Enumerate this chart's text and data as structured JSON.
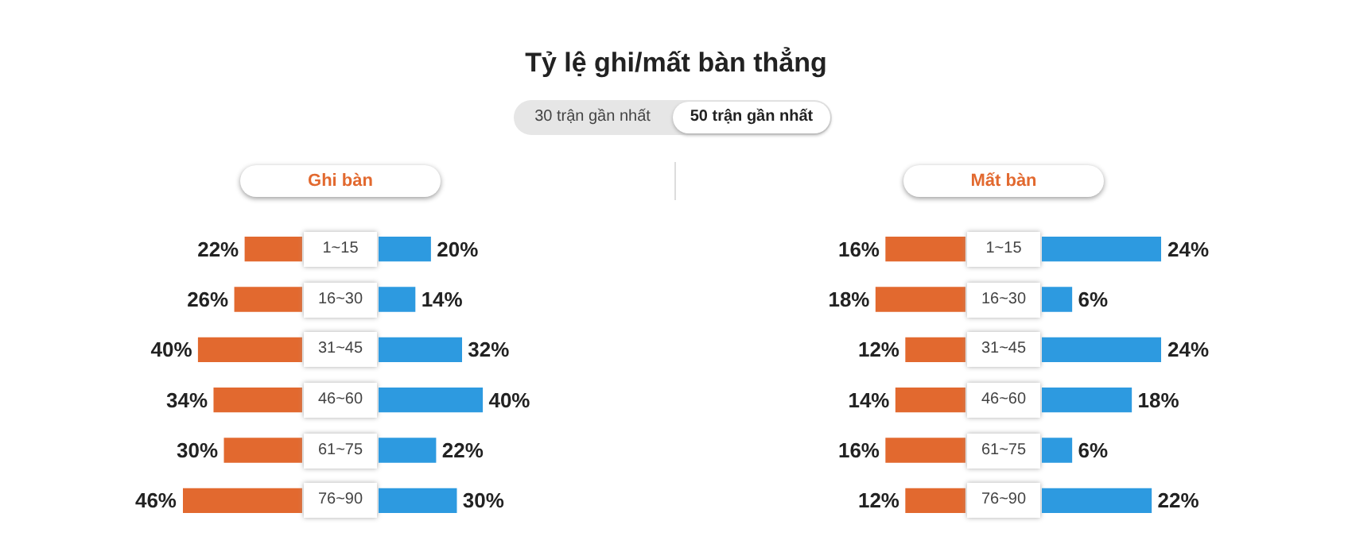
{
  "chart_data": [
    {
      "type": "bar",
      "orientation": "horizontal",
      "title": "Ghi bàn",
      "annotations": [
        "Tỷ lệ ghi/mất bàn thẳng",
        "30 trận gần nhất",
        "50 trận gần nhất"
      ],
      "categories": [
        "1~15",
        "16~30",
        "31~45",
        "46~60",
        "61~75",
        "76~90"
      ],
      "color": "#e2692f",
      "values": [
        22,
        26,
        40,
        34,
        30,
        46
      ],
      "value_labels": [
        "22%",
        "26%",
        "40%",
        "34%",
        "30%",
        "46%"
      ]
    },
    {
      "type": "bar",
      "orientation": "horizontal",
      "categories": [
        null,
        null,
        null,
        null,
        null,
        null
      ],
      "color": "#2d9ae0",
      "values": [
        20,
        14,
        32,
        40,
        22,
        30
      ],
      "value_labels": [
        "20%",
        "14%",
        "32%",
        "40%",
        "22%",
        "30%"
      ]
    },
    {
      "type": "bar",
      "orientation": "horizontal",
      "title": "Mất bàn",
      "categories": [
        "1~15",
        "16~30",
        "31~45",
        "46~60",
        "61~75",
        "76~90"
      ],
      "color": "#e2692f",
      "values": [
        16,
        18,
        12,
        14,
        16,
        12
      ],
      "value_labels": [
        "16%",
        "18%",
        "12%",
        "14%",
        "16%",
        "12%"
      ]
    },
    {
      "type": "bar",
      "orientation": "horizontal",
      "categories": [
        null,
        null,
        null,
        null,
        null,
        null
      ],
      "color": "#2d9ae0",
      "values": [
        24,
        6,
        24,
        18,
        6,
        22
      ],
      "value_labels": [
        "24%",
        "6%",
        "24%",
        "18%",
        "6%",
        "22%"
      ]
    }
  ]
}
